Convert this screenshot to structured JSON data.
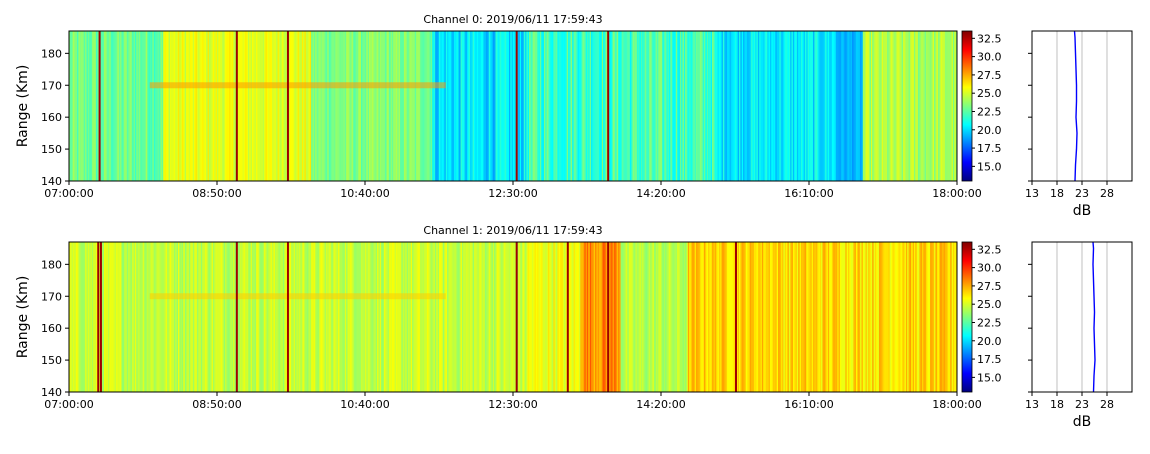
{
  "colors": {
    "jet": [
      "#00007f",
      "#0000ff",
      "#007fff",
      "#00ffff",
      "#7fff7f",
      "#ffff00",
      "#ff7f00",
      "#ff0000",
      "#7f0000"
    ],
    "profile_line": "#0000ff",
    "grid": "#b0b0b0"
  },
  "chart_data": [
    {
      "type": "heatmap",
      "title": "Channel 0: 2019/06/11 17:59:43",
      "xlabel": "",
      "ylabel": "Range (Km)",
      "x_ticks": [
        "07:00:00",
        "08:50:00",
        "10:40:00",
        "12:30:00",
        "14:20:00",
        "16:10:00",
        "18:00:00"
      ],
      "xlim_minutes": [
        420,
        1080
      ],
      "y_ticks": [
        140,
        150,
        160,
        170,
        180
      ],
      "ylim": [
        140,
        187
      ],
      "colorbar": {
        "vmin": 13.0,
        "vmax": 33.5,
        "ticks": [
          "15.0",
          "17.5",
          "20.0",
          "22.5",
          "25.0",
          "27.5",
          "30.0",
          "32.5"
        ]
      },
      "echo_band_km": 170,
      "dark_stripes_minutes": [
        442,
        544,
        582,
        752,
        820
      ],
      "profile": {
        "xlabel": "dB",
        "x_ticks": [
          "13",
          "18",
          "23",
          "28"
        ],
        "xlim": [
          13,
          33
        ],
        "range_km": [
          140,
          145,
          150,
          155,
          160,
          165,
          170,
          175,
          180,
          185,
          187
        ],
        "power_db": [
          21.6,
          21.7,
          21.9,
          22.0,
          21.8,
          21.9,
          21.9,
          21.8,
          21.7,
          21.6,
          21.5
        ]
      }
    },
    {
      "type": "heatmap",
      "title": "Channel 1: 2019/06/11 17:59:43",
      "xlabel": "",
      "ylabel": "Range (Km)",
      "x_ticks": [
        "07:00:00",
        "08:50:00",
        "10:40:00",
        "12:30:00",
        "14:20:00",
        "16:10:00",
        "18:00:00"
      ],
      "xlim_minutes": [
        420,
        1080
      ],
      "y_ticks": [
        140,
        150,
        160,
        170,
        180
      ],
      "ylim": [
        140,
        187
      ],
      "colorbar": {
        "vmin": 13.0,
        "vmax": 33.5,
        "ticks": [
          "15.0",
          "17.5",
          "20.0",
          "22.5",
          "25.0",
          "27.5",
          "30.0",
          "32.5"
        ]
      },
      "echo_band_km": 170,
      "dark_stripes_minutes": [
        441,
        443,
        544,
        582,
        752,
        790,
        820,
        915
      ],
      "profile": {
        "xlabel": "dB",
        "x_ticks": [
          "13",
          "18",
          "23",
          "28"
        ],
        "xlim": [
          13,
          33
        ],
        "range_km": [
          140,
          145,
          150,
          155,
          160,
          165,
          170,
          175,
          180,
          185,
          187
        ],
        "power_db": [
          25.3,
          25.4,
          25.6,
          25.5,
          25.4,
          25.5,
          25.4,
          25.3,
          25.2,
          25.3,
          25.2
        ]
      }
    }
  ]
}
